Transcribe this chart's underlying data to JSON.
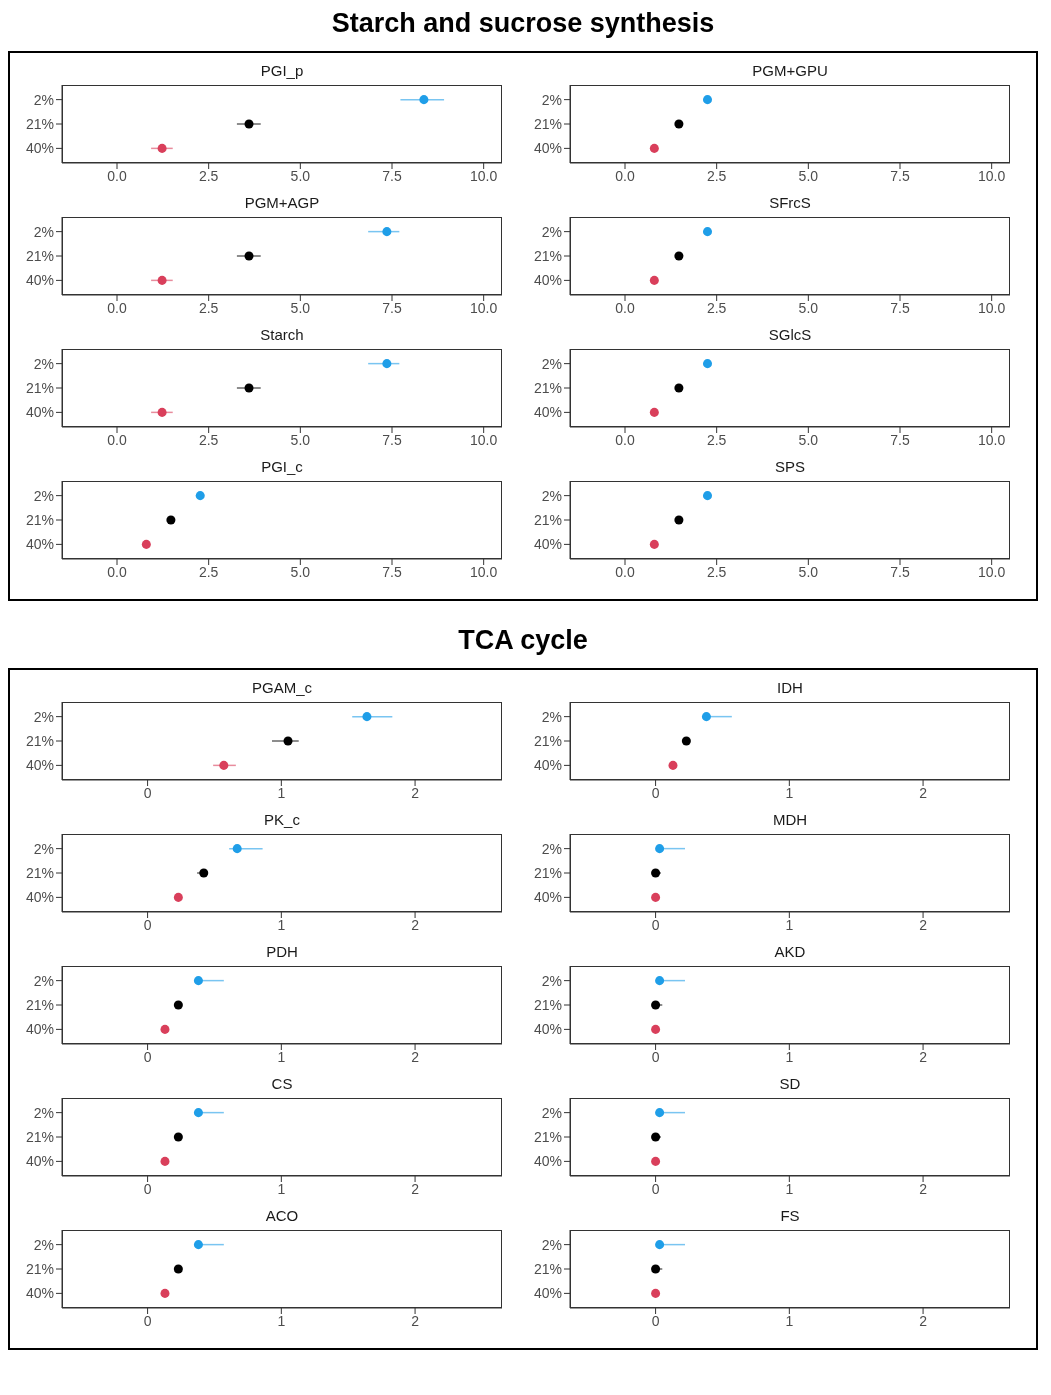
{
  "chart_data": [
    {
      "type": "scatter",
      "title": "PGI_p",
      "annotations": [
        "Starch and sucrose synthesis"
      ],
      "orientation": "horizontal",
      "categories": [
        "2%",
        "21%",
        "40%"
      ],
      "values": [
        8.37,
        3.6,
        1.23
      ],
      "errors": [
        [
          7.73,
          8.92
        ],
        [
          3.27,
          3.92
        ],
        [
          0.93,
          1.52
        ]
      ],
      "colors": [
        "#1f9ee8",
        "#000000",
        "#d93f5b"
      ],
      "marker": "circle",
      "xlim": [
        -1.5,
        10.5
      ],
      "xticks": [
        {
          "value": 0,
          "label": "0.0"
        },
        {
          "value": 2.5,
          "label": "2.5"
        },
        {
          "value": 5,
          "label": "5.0"
        },
        {
          "value": 7.5,
          "label": "7.5"
        },
        {
          "value": 10,
          "label": "10.0"
        }
      ]
    },
    {
      "type": "scatter",
      "title": "PGM+GPU",
      "orientation": "horizontal",
      "categories": [
        "2%",
        "21%",
        "40%"
      ],
      "values": [
        2.25,
        1.47,
        0.8
      ],
      "colors": [
        "#1f9ee8",
        "#000000",
        "#d93f5b"
      ],
      "marker": "circle",
      "xlim": [
        -1.5,
        10.5
      ],
      "xticks": [
        {
          "value": 0,
          "label": "0.0"
        },
        {
          "value": 2.5,
          "label": "2.5"
        },
        {
          "value": 5,
          "label": "5.0"
        },
        {
          "value": 7.5,
          "label": "7.5"
        },
        {
          "value": 10,
          "label": "10.0"
        }
      ]
    },
    {
      "type": "scatter",
      "title": "PGM+AGP",
      "orientation": "horizontal",
      "categories": [
        "2%",
        "21%",
        "40%"
      ],
      "values": [
        7.36,
        3.6,
        1.23
      ],
      "errors": [
        [
          6.85,
          7.7
        ],
        [
          3.27,
          3.92
        ],
        [
          0.93,
          1.52
        ]
      ],
      "colors": [
        "#1f9ee8",
        "#000000",
        "#d93f5b"
      ],
      "marker": "circle",
      "xlim": [
        -1.5,
        10.5
      ],
      "xticks": [
        {
          "value": 0,
          "label": "0.0"
        },
        {
          "value": 2.5,
          "label": "2.5"
        },
        {
          "value": 5,
          "label": "5.0"
        },
        {
          "value": 7.5,
          "label": "7.5"
        },
        {
          "value": 10,
          "label": "10.0"
        }
      ]
    },
    {
      "type": "scatter",
      "title": "SFrcS",
      "orientation": "horizontal",
      "categories": [
        "2%",
        "21%",
        "40%"
      ],
      "values": [
        2.25,
        1.47,
        0.8
      ],
      "colors": [
        "#1f9ee8",
        "#000000",
        "#d93f5b"
      ],
      "marker": "circle",
      "xlim": [
        -1.5,
        10.5
      ],
      "xticks": [
        {
          "value": 0,
          "label": "0.0"
        },
        {
          "value": 2.5,
          "label": "2.5"
        },
        {
          "value": 5,
          "label": "5.0"
        },
        {
          "value": 7.5,
          "label": "7.5"
        },
        {
          "value": 10,
          "label": "10.0"
        }
      ]
    },
    {
      "type": "scatter",
      "title": "Starch",
      "orientation": "horizontal",
      "categories": [
        "2%",
        "21%",
        "40%"
      ],
      "values": [
        7.36,
        3.6,
        1.23
      ],
      "errors": [
        [
          6.85,
          7.7
        ],
        [
          3.27,
          3.92
        ],
        [
          0.93,
          1.52
        ]
      ],
      "colors": [
        "#1f9ee8",
        "#000000",
        "#d93f5b"
      ],
      "marker": "circle",
      "xlim": [
        -1.5,
        10.5
      ],
      "xticks": [
        {
          "value": 0,
          "label": "0.0"
        },
        {
          "value": 2.5,
          "label": "2.5"
        },
        {
          "value": 5,
          "label": "5.0"
        },
        {
          "value": 7.5,
          "label": "7.5"
        },
        {
          "value": 10,
          "label": "10.0"
        }
      ]
    },
    {
      "type": "scatter",
      "title": "SGlcS",
      "orientation": "horizontal",
      "categories": [
        "2%",
        "21%",
        "40%"
      ],
      "values": [
        2.25,
        1.47,
        0.8
      ],
      "colors": [
        "#1f9ee8",
        "#000000",
        "#d93f5b"
      ],
      "marker": "circle",
      "xlim": [
        -1.5,
        10.5
      ],
      "xticks": [
        {
          "value": 0,
          "label": "0.0"
        },
        {
          "value": 2.5,
          "label": "2.5"
        },
        {
          "value": 5,
          "label": "5.0"
        },
        {
          "value": 7.5,
          "label": "7.5"
        },
        {
          "value": 10,
          "label": "10.0"
        }
      ]
    },
    {
      "type": "scatter",
      "title": "PGI_c",
      "orientation": "horizontal",
      "categories": [
        "2%",
        "21%",
        "40%"
      ],
      "values": [
        2.27,
        1.47,
        0.8
      ],
      "errors": [
        [
          2.15,
          2.37
        ],
        null,
        null
      ],
      "colors": [
        "#1f9ee8",
        "#000000",
        "#d93f5b"
      ],
      "marker": "circle",
      "xlim": [
        -1.5,
        10.5
      ],
      "xticks": [
        {
          "value": 0,
          "label": "0.0"
        },
        {
          "value": 2.5,
          "label": "2.5"
        },
        {
          "value": 5,
          "label": "5.0"
        },
        {
          "value": 7.5,
          "label": "7.5"
        },
        {
          "value": 10,
          "label": "10.0"
        }
      ]
    },
    {
      "type": "scatter",
      "title": "SPS",
      "orientation": "horizontal",
      "categories": [
        "2%",
        "21%",
        "40%"
      ],
      "values": [
        2.25,
        1.47,
        0.8
      ],
      "colors": [
        "#1f9ee8",
        "#000000",
        "#d93f5b"
      ],
      "marker": "circle",
      "xlim": [
        -1.5,
        10.5
      ],
      "xticks": [
        {
          "value": 0,
          "label": "0.0"
        },
        {
          "value": 2.5,
          "label": "2.5"
        },
        {
          "value": 5,
          "label": "5.0"
        },
        {
          "value": 7.5,
          "label": "7.5"
        },
        {
          "value": 10,
          "label": "10.0"
        }
      ]
    },
    {
      "type": "scatter",
      "title": "PGAM_c",
      "annotations": [
        "TCA cycle"
      ],
      "orientation": "horizontal",
      "categories": [
        "2%",
        "21%",
        "40%"
      ],
      "values": [
        1.64,
        1.05,
        0.57
      ],
      "errors": [
        [
          1.53,
          1.83
        ],
        [
          0.93,
          1.13
        ],
        [
          0.49,
          0.66
        ]
      ],
      "colors": [
        "#1f9ee8",
        "#000000",
        "#d93f5b"
      ],
      "marker": "circle",
      "xlim": [
        -0.64,
        2.65
      ],
      "xticks": [
        0,
        1,
        2
      ]
    },
    {
      "type": "scatter",
      "title": "IDH",
      "orientation": "horizontal",
      "categories": [
        "2%",
        "21%",
        "40%"
      ],
      "values": [
        0.38,
        0.23,
        0.13
      ],
      "errors": [
        [
          0.35,
          0.57
        ],
        null,
        null
      ],
      "colors": [
        "#1f9ee8",
        "#000000",
        "#d93f5b"
      ],
      "marker": "circle",
      "xlim": [
        -0.64,
        2.65
      ],
      "xticks": [
        0,
        1,
        2
      ]
    },
    {
      "type": "scatter",
      "title": "PK_c",
      "orientation": "horizontal",
      "categories": [
        "2%",
        "21%",
        "40%"
      ],
      "values": [
        0.67,
        0.42,
        0.23
      ],
      "errors": [
        [
          0.61,
          0.86
        ],
        [
          0.37,
          0.44
        ],
        null
      ],
      "colors": [
        "#1f9ee8",
        "#000000",
        "#d93f5b"
      ],
      "marker": "circle",
      "xlim": [
        -0.64,
        2.65
      ],
      "xticks": [
        0,
        1,
        2
      ]
    },
    {
      "type": "scatter",
      "title": "MDH",
      "orientation": "horizontal",
      "categories": [
        "2%",
        "21%",
        "40%"
      ],
      "values": [
        0.03,
        0,
        0
      ],
      "errors": [
        [
          0.01,
          0.22
        ],
        [
          0,
          0.04
        ],
        null
      ],
      "colors": [
        "#1f9ee8",
        "#000000",
        "#d93f5b"
      ],
      "marker": "circle",
      "xlim": [
        -0.64,
        2.65
      ],
      "xticks": [
        0,
        1,
        2
      ]
    },
    {
      "type": "scatter",
      "title": "PDH",
      "orientation": "horizontal",
      "categories": [
        "2%",
        "21%",
        "40%"
      ],
      "values": [
        0.38,
        0.23,
        0.13
      ],
      "errors": [
        [
          0.35,
          0.57
        ],
        null,
        null
      ],
      "colors": [
        "#1f9ee8",
        "#000000",
        "#d93f5b"
      ],
      "marker": "circle",
      "xlim": [
        -0.64,
        2.65
      ],
      "xticks": [
        0,
        1,
        2
      ]
    },
    {
      "type": "scatter",
      "title": "AKD",
      "orientation": "horizontal",
      "categories": [
        "2%",
        "21%",
        "40%"
      ],
      "values": [
        0.03,
        0,
        0
      ],
      "errors": [
        [
          0.01,
          0.22
        ],
        [
          0,
          0.05
        ],
        null
      ],
      "colors": [
        "#1f9ee8",
        "#000000",
        "#d93f5b"
      ],
      "marker": "circle",
      "xlim": [
        -0.64,
        2.65
      ],
      "xticks": [
        0,
        1,
        2
      ]
    },
    {
      "type": "scatter",
      "title": "CS",
      "orientation": "horizontal",
      "categories": [
        "2%",
        "21%",
        "40%"
      ],
      "values": [
        0.38,
        0.23,
        0.13
      ],
      "errors": [
        [
          0.35,
          0.57
        ],
        null,
        null
      ],
      "colors": [
        "#1f9ee8",
        "#000000",
        "#d93f5b"
      ],
      "marker": "circle",
      "xlim": [
        -0.64,
        2.65
      ],
      "xticks": [
        0,
        1,
        2
      ]
    },
    {
      "type": "scatter",
      "title": "SD",
      "orientation": "horizontal",
      "categories": [
        "2%",
        "21%",
        "40%"
      ],
      "values": [
        0.03,
        0,
        0
      ],
      "errors": [
        [
          0.01,
          0.22
        ],
        [
          0,
          0.04
        ],
        null
      ],
      "colors": [
        "#1f9ee8",
        "#000000",
        "#d93f5b"
      ],
      "marker": "circle",
      "xlim": [
        -0.64,
        2.65
      ],
      "xticks": [
        0,
        1,
        2
      ]
    },
    {
      "type": "scatter",
      "title": "ACO",
      "orientation": "horizontal",
      "categories": [
        "2%",
        "21%",
        "40%"
      ],
      "values": [
        0.38,
        0.23,
        0.13
      ],
      "errors": [
        [
          0.35,
          0.57
        ],
        null,
        null
      ],
      "colors": [
        "#1f9ee8",
        "#000000",
        "#d93f5b"
      ],
      "marker": "circle",
      "xlim": [
        -0.64,
        2.65
      ],
      "xticks": [
        0,
        1,
        2
      ]
    },
    {
      "type": "scatter",
      "title": "FS",
      "orientation": "horizontal",
      "categories": [
        "2%",
        "21%",
        "40%"
      ],
      "values": [
        0.03,
        0,
        0
      ],
      "errors": [
        [
          0.01,
          0.22
        ],
        [
          0,
          0.05
        ],
        null
      ],
      "colors": [
        "#1f9ee8",
        "#000000",
        "#d93f5b"
      ],
      "marker": "circle",
      "xlim": [
        -0.64,
        2.65
      ],
      "xticks": [
        0,
        1,
        2
      ]
    }
  ]
}
